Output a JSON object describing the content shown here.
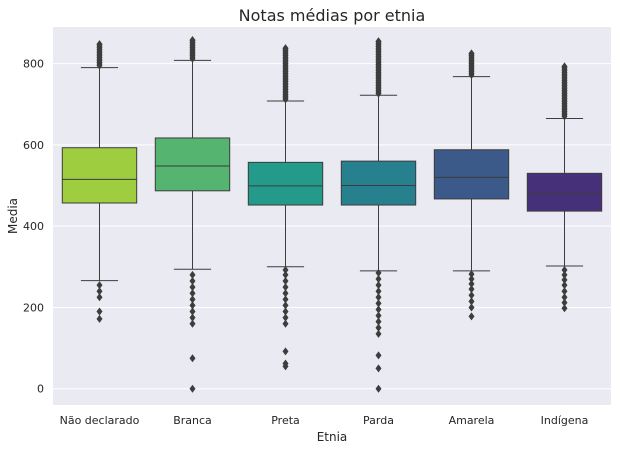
{
  "chart_data": {
    "type": "boxplot",
    "title": "Notas médias por etnia",
    "xlabel": "Etnia",
    "ylabel": "Media",
    "ylim": [
      -40,
      890
    ],
    "yticks": [
      0,
      200,
      400,
      600,
      800
    ],
    "grid": true,
    "categories": [
      "Não declarado",
      "Branca",
      "Preta",
      "Parda",
      "Amarela",
      "Indígena"
    ],
    "colors": [
      "#9fcd40",
      "#55b46f",
      "#249a8a",
      "#27808e",
      "#3b5989",
      "#47307a"
    ],
    "boxes": [
      {
        "whislo": 266,
        "q1": 457,
        "med": 515,
        "q3": 593,
        "whishi": 790,
        "fliers_low": [
          172,
          190,
          225,
          240,
          255
        ],
        "fliers_high_range": [
          795,
          848
        ]
      },
      {
        "whislo": 294,
        "q1": 487,
        "med": 548,
        "q3": 617,
        "whishi": 808,
        "fliers_low": [
          0,
          75,
          160,
          175,
          190,
          205,
          220,
          235,
          250,
          265,
          280
        ],
        "fliers_high_range": [
          812,
          858
        ]
      },
      {
        "whislo": 300,
        "q1": 452,
        "med": 499,
        "q3": 557,
        "whishi": 708,
        "fliers_low": [
          55,
          62,
          92,
          160,
          175,
          190,
          205,
          220,
          235,
          250,
          265,
          280,
          292
        ],
        "fliers_high_range": [
          712,
          838
        ]
      },
      {
        "whislo": 290,
        "q1": 452,
        "med": 500,
        "q3": 560,
        "whishi": 722,
        "fliers_low": [
          0,
          50,
          82,
          135,
          150,
          165,
          180,
          195,
          210,
          225,
          240,
          255,
          270,
          285
        ],
        "fliers_high_range": [
          726,
          855
        ]
      },
      {
        "whislo": 290,
        "q1": 467,
        "med": 520,
        "q3": 588,
        "whishi": 768,
        "fliers_low": [
          178,
          200,
          215,
          230,
          245,
          258,
          270,
          282
        ],
        "fliers_high_range": [
          772,
          825
        ]
      },
      {
        "whislo": 302,
        "q1": 437,
        "med": 481,
        "q3": 530,
        "whishi": 665,
        "fliers_low": [
          198,
          212,
          225,
          240,
          255,
          268,
          280,
          292
        ],
        "fliers_high_range": [
          670,
          793
        ]
      }
    ]
  }
}
